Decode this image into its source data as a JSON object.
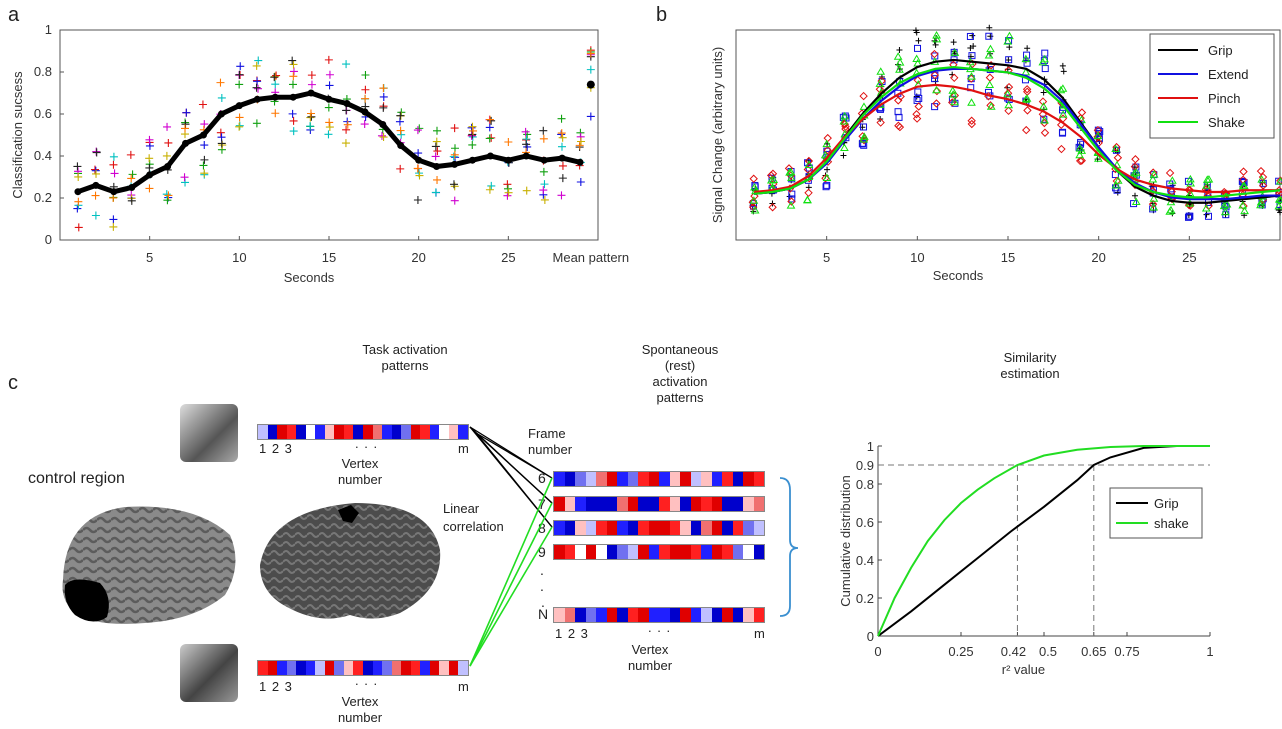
{
  "panels": {
    "a": "a",
    "b": "b",
    "c": "c"
  },
  "colors": {
    "grip": "#000000",
    "extend": "#1010e0",
    "pinch": "#e01010",
    "shake": "#10e010"
  },
  "panel_c": {
    "task_title_1": "Task activation",
    "task_title_2": "patterns",
    "spont_title_1": "Spontaneous",
    "spont_title_2": "(rest)",
    "spont_title_3": "activation",
    "spont_title_4": "patterns",
    "sim_title_1": "Similarity",
    "sim_title_2": "estimation",
    "control_region": "control region",
    "vertex_numbers": "1 2 3",
    "ellipsis": ". . .",
    "m": "m",
    "vertex_1": "Vertex",
    "vertex_2": "number",
    "frame_1": "Frame",
    "frame_2": "number",
    "frames": [
      "6",
      "7",
      "8",
      "9",
      ".",
      ".",
      "N"
    ],
    "linear_1": "Linear",
    "linear_2": "correlation",
    "n_dot": "."
  },
  "chart_data": [
    {
      "type": "line",
      "panel": "a",
      "xlabel": "Seconds",
      "ylabel": "Classification sucsess",
      "xticks": [
        "5",
        "10",
        "15",
        "20",
        "25",
        "Mean pattern"
      ],
      "yticks": [
        "0",
        "0.2",
        "0.4",
        "0.6",
        "0.8",
        "1"
      ],
      "ylim": [
        0,
        1
      ],
      "xlim": [
        0,
        30
      ],
      "x": [
        1,
        2,
        3,
        4,
        5,
        6,
        7,
        8,
        9,
        10,
        11,
        12,
        13,
        14,
        15,
        16,
        17,
        18,
        19,
        20,
        21,
        22,
        23,
        24,
        25,
        26,
        27,
        28,
        29
      ],
      "series": [
        {
          "values": [
            0.23,
            0.26,
            0.23,
            0.25,
            0.31,
            0.35,
            0.46,
            0.5,
            0.6,
            0.64,
            0.67,
            0.68,
            0.68,
            0.7,
            0.67,
            0.65,
            0.61,
            0.55,
            0.45,
            0.38,
            0.35,
            0.36,
            0.38,
            0.4,
            0.38,
            0.4,
            0.38,
            0.39,
            0.37
          ]
        }
      ],
      "mean_pattern": 0.74,
      "scatter_note": "colored + markers per subject"
    },
    {
      "type": "line",
      "panel": "b",
      "xlabel": "Seconds",
      "ylabel": "Signal Change (arbitrary units)",
      "xticks": [
        "5",
        "10",
        "15",
        "20",
        "25"
      ],
      "xlim": [
        0,
        30
      ],
      "legend": "top-right",
      "x": [
        1,
        2,
        3,
        4,
        5,
        6,
        7,
        8,
        9,
        10,
        11,
        12,
        13,
        14,
        15,
        16,
        17,
        18,
        19,
        20,
        21,
        22,
        23,
        24,
        25,
        26,
        27,
        28,
        29,
        30
      ],
      "series": [
        {
          "name": "Grip",
          "values": [
            0.2,
            0.21,
            0.23,
            0.28,
            0.38,
            0.52,
            0.65,
            0.76,
            0.85,
            0.91,
            0.94,
            0.95,
            0.94,
            0.93,
            0.92,
            0.9,
            0.84,
            0.74,
            0.6,
            0.46,
            0.33,
            0.24,
            0.19,
            0.16,
            0.15,
            0.15,
            0.16,
            0.17,
            0.18,
            0.19
          ]
        },
        {
          "name": "Extend",
          "values": [
            0.2,
            0.21,
            0.23,
            0.28,
            0.37,
            0.5,
            0.62,
            0.72,
            0.8,
            0.86,
            0.89,
            0.9,
            0.9,
            0.89,
            0.88,
            0.86,
            0.81,
            0.72,
            0.59,
            0.46,
            0.34,
            0.26,
            0.21,
            0.18,
            0.17,
            0.17,
            0.17,
            0.18,
            0.19,
            0.19
          ]
        },
        {
          "name": "Pinch",
          "values": [
            0.21,
            0.22,
            0.24,
            0.3,
            0.4,
            0.52,
            0.62,
            0.7,
            0.76,
            0.8,
            0.81,
            0.8,
            0.78,
            0.75,
            0.73,
            0.7,
            0.66,
            0.6,
            0.52,
            0.42,
            0.34,
            0.28,
            0.25,
            0.23,
            0.22,
            0.21,
            0.21,
            0.22,
            0.22,
            0.22
          ]
        },
        {
          "name": "Shake",
          "values": [
            0.2,
            0.21,
            0.23,
            0.28,
            0.38,
            0.51,
            0.64,
            0.74,
            0.82,
            0.87,
            0.9,
            0.91,
            0.9,
            0.89,
            0.88,
            0.85,
            0.79,
            0.7,
            0.57,
            0.44,
            0.33,
            0.25,
            0.21,
            0.19,
            0.18,
            0.18,
            0.19,
            0.2,
            0.21,
            0.22
          ]
        }
      ]
    },
    {
      "type": "line",
      "panel": "c",
      "xlabel": "r² value",
      "ylabel": "Cumulative distribution",
      "xticks": [
        "0",
        "0.25",
        "0.42",
        "0.5",
        "0.65",
        "0.75",
        "1"
      ],
      "yticks": [
        "0",
        "0.2",
        "0.4",
        "0.6",
        "0.8",
        "0.9",
        "1"
      ],
      "xlim": [
        0,
        1
      ],
      "ylim": [
        0,
        1
      ],
      "legend": "center-right",
      "threshold_y": 0.9,
      "marked_x": [
        0.42,
        0.65
      ],
      "series": [
        {
          "name": "Grip",
          "x": [
            0,
            0.1,
            0.2,
            0.3,
            0.4,
            0.5,
            0.6,
            0.65,
            0.7,
            0.8,
            0.9,
            1
          ],
          "values": [
            0,
            0.13,
            0.27,
            0.41,
            0.55,
            0.68,
            0.82,
            0.9,
            0.94,
            0.99,
            1,
            1
          ]
        },
        {
          "name": "shake",
          "x": [
            0,
            0.05,
            0.1,
            0.15,
            0.2,
            0.25,
            0.3,
            0.35,
            0.42,
            0.5,
            0.6,
            0.7,
            0.8,
            1
          ],
          "values": [
            0,
            0.2,
            0.36,
            0.5,
            0.61,
            0.7,
            0.77,
            0.83,
            0.9,
            0.95,
            0.98,
            0.995,
            1,
            1
          ]
        }
      ]
    }
  ]
}
